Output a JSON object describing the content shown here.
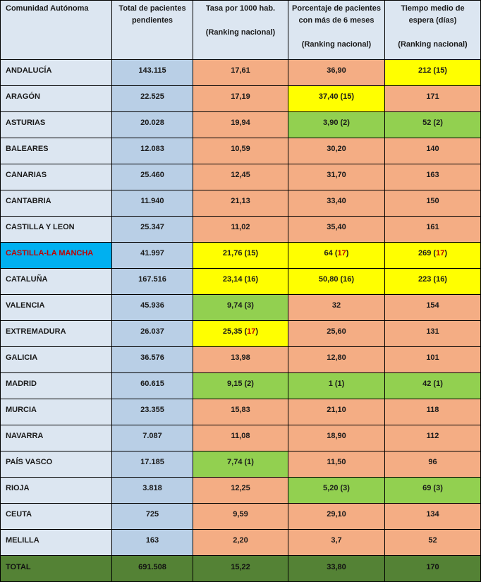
{
  "headers": {
    "region": "Comunidad Autónoma",
    "total_line1": "Total de pacientes",
    "total_line2": "pendientes",
    "rate_line1": "Tasa por 1000 hab.",
    "rate_line2": "(Ranking nacional)",
    "pct_line1": "Porcentaje de pacientes",
    "pct_line2": "con más de 6 meses",
    "pct_line3": "(Ranking nacional)",
    "wait_line1": "Tiempo medio de",
    "wait_line2": "espera (días)",
    "wait_line3": "(Ranking nacional)"
  },
  "colors": {
    "header_bg": "#dce6f1",
    "total_col_bg": "#b9cfe6",
    "orange": "#f4ad84",
    "yellow": "#ffff00",
    "green": "#92d050",
    "highlight_region": "#00b0f0",
    "highlight_text": "#c00000",
    "total_row_bg": "#548235"
  },
  "rows": [
    {
      "region": "ANDALUCÍA",
      "total": "143.115",
      "rate": "17,61",
      "pct": "36,90",
      "wait": "212 (15)"
    },
    {
      "region": "ARAGÓN",
      "total": "22.525",
      "rate": "17,19",
      "pct": "37,40 (15)",
      "wait": "171"
    },
    {
      "region": "ASTURIAS",
      "total": "20.028",
      "rate": "19,94",
      "pct": "3,90 (2)",
      "wait": "52 (2)"
    },
    {
      "region": "BALEARES",
      "total": "12.083",
      "rate": "10,59",
      "pct": "30,20",
      "wait": "140"
    },
    {
      "region": "CANARIAS",
      "total": "25.460",
      "rate": "12,45",
      "pct": "31,70",
      "wait": "163"
    },
    {
      "region": "CANTABRIA",
      "total": "11.940",
      "rate": "21,13",
      "pct": "33,40",
      "wait": "150"
    },
    {
      "region": "CASTILLA Y LEON",
      "total": "25.347",
      "rate": "11,02",
      "pct": "35,40",
      "wait": "161"
    },
    {
      "region": "CASTILLA-LA MANCHA",
      "total": "41.997",
      "rate": "21,76 (15)",
      "pct_value": "64",
      "pct_rank": "17",
      "wait_value": "269",
      "wait_rank": "17"
    },
    {
      "region": "CATALUÑA",
      "total": "167.516",
      "rate": "23,14 (16)",
      "pct": "50,80 (16)",
      "wait": "223 (16)"
    },
    {
      "region": "VALENCIA",
      "total": "45.936",
      "rate": "9,74 (3)",
      "pct": "32",
      "wait": "154"
    },
    {
      "region": "EXTREMADURA",
      "total": "26.037",
      "rate_value": "25,35",
      "rate_rank": "17",
      "pct": "25,60",
      "wait": "131"
    },
    {
      "region": "GALICIA",
      "total": "36.576",
      "rate": "13,98",
      "pct": "12,80",
      "wait": "101"
    },
    {
      "region": "MADRID",
      "total": "60.615",
      "rate": "9,15 (2)",
      "pct": "1 (1)",
      "wait": "42 (1)"
    },
    {
      "region": "MURCIA",
      "total": "23.355",
      "rate": "15,83",
      "pct": "21,10",
      "wait": "118"
    },
    {
      "region": "NAVARRA",
      "total": "7.087",
      "rate": "11,08",
      "pct": "18,90",
      "wait": "112"
    },
    {
      "region": "PAÍS VASCO",
      "total": "17.185",
      "rate": "7,74 (1)",
      "pct": "11,50",
      "wait": "96"
    },
    {
      "region": "RIOJA",
      "total": "3.818",
      "rate": "12,25",
      "pct": "5,20 (3)",
      "wait": "69 (3)"
    },
    {
      "region": "CEUTA",
      "total": "725",
      "rate": "9,59",
      "pct": "29,10",
      "wait": "134"
    },
    {
      "region": "MELILLA",
      "total": "163",
      "rate": "2,20",
      "pct": "3,7",
      "wait": "52"
    }
  ],
  "total_row": {
    "region": "TOTAL",
    "total": "691.508",
    "rate": "15,22",
    "pct": "33,80",
    "wait": "170"
  }
}
